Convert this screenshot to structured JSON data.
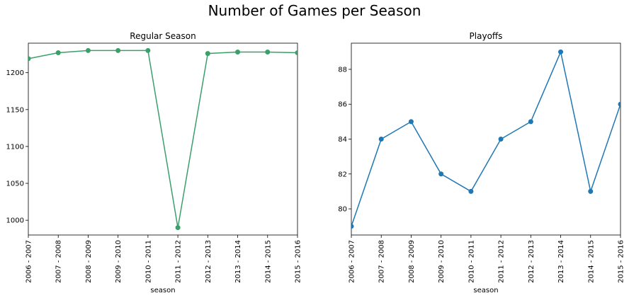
{
  "figure": {
    "title": "Number of Games per Season"
  },
  "chart_data": [
    {
      "type": "line",
      "title": "Regular Season",
      "xlabel": "season",
      "ylabel": "",
      "color": "#3aa06a",
      "categories": [
        "2006 - 2007",
        "2007 - 2008",
        "2008 - 2009",
        "2009 - 2010",
        "2010 - 2011",
        "2011 - 2012",
        "2012 - 2013",
        "2013 - 2014",
        "2014 - 2015",
        "2015 - 2016"
      ],
      "values": [
        1219,
        1227,
        1230,
        1230,
        1230,
        990,
        1226,
        1228,
        1228,
        1227
      ],
      "ylim": [
        980,
        1240
      ],
      "yticks": [
        1000,
        1050,
        1100,
        1150,
        1200
      ],
      "grid": false,
      "markers": true
    },
    {
      "type": "line",
      "title": "Playoffs",
      "xlabel": "season",
      "ylabel": "",
      "color": "#1f77b4",
      "categories": [
        "2006 - 2007",
        "2007 - 2008",
        "2008 - 2009",
        "2009 - 2010",
        "2010 - 2011",
        "2011 - 2012",
        "2012 - 2013",
        "2013 - 2014",
        "2014 - 2015",
        "2015 - 2016"
      ],
      "values": [
        79,
        84,
        85,
        82,
        81,
        84,
        85,
        89,
        81,
        86
      ],
      "ylim": [
        78.5,
        89.5
      ],
      "yticks": [
        80,
        82,
        84,
        86,
        88
      ],
      "grid": false,
      "markers": true
    }
  ]
}
